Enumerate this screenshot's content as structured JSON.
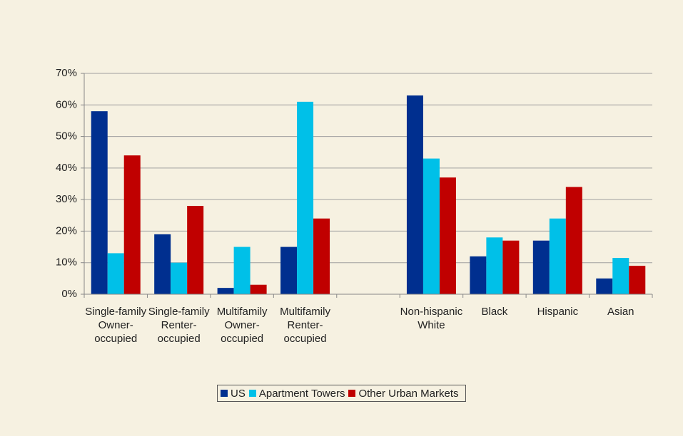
{
  "chart_data": {
    "type": "bar",
    "categories": [
      "Single-family Owner-occupied",
      "Single-family Renter-occupied",
      "Multifamily Owner-occupied",
      "Multifamily Renter-occupied",
      null,
      "Non-hispanic White",
      "Black",
      "Hispanic",
      "Asian"
    ],
    "series": [
      {
        "name": "US",
        "color": "#002f8f",
        "values": [
          58,
          19,
          2,
          15,
          null,
          63,
          12,
          17,
          5
        ]
      },
      {
        "name": "Apartment Towers",
        "color": "#00c0e8",
        "values": [
          13,
          10,
          15,
          61,
          null,
          43,
          18,
          24,
          11.5
        ]
      },
      {
        "name": "Other Urban Markets",
        "color": "#c00000",
        "values": [
          44,
          28,
          3,
          24,
          null,
          37,
          17,
          34,
          9
        ]
      }
    ],
    "ylim": [
      0,
      70
    ],
    "yticks": [
      {
        "value": 0,
        "label": "0%"
      },
      {
        "value": 10,
        "label": "10%"
      },
      {
        "value": 20,
        "label": "20%"
      },
      {
        "value": 30,
        "label": "30%"
      },
      {
        "value": 40,
        "label": "40%"
      },
      {
        "value": 50,
        "label": "50%"
      },
      {
        "value": 60,
        "label": "60%"
      },
      {
        "value": 70,
        "label": "70%"
      }
    ],
    "grid": true,
    "legend": "bottom"
  }
}
